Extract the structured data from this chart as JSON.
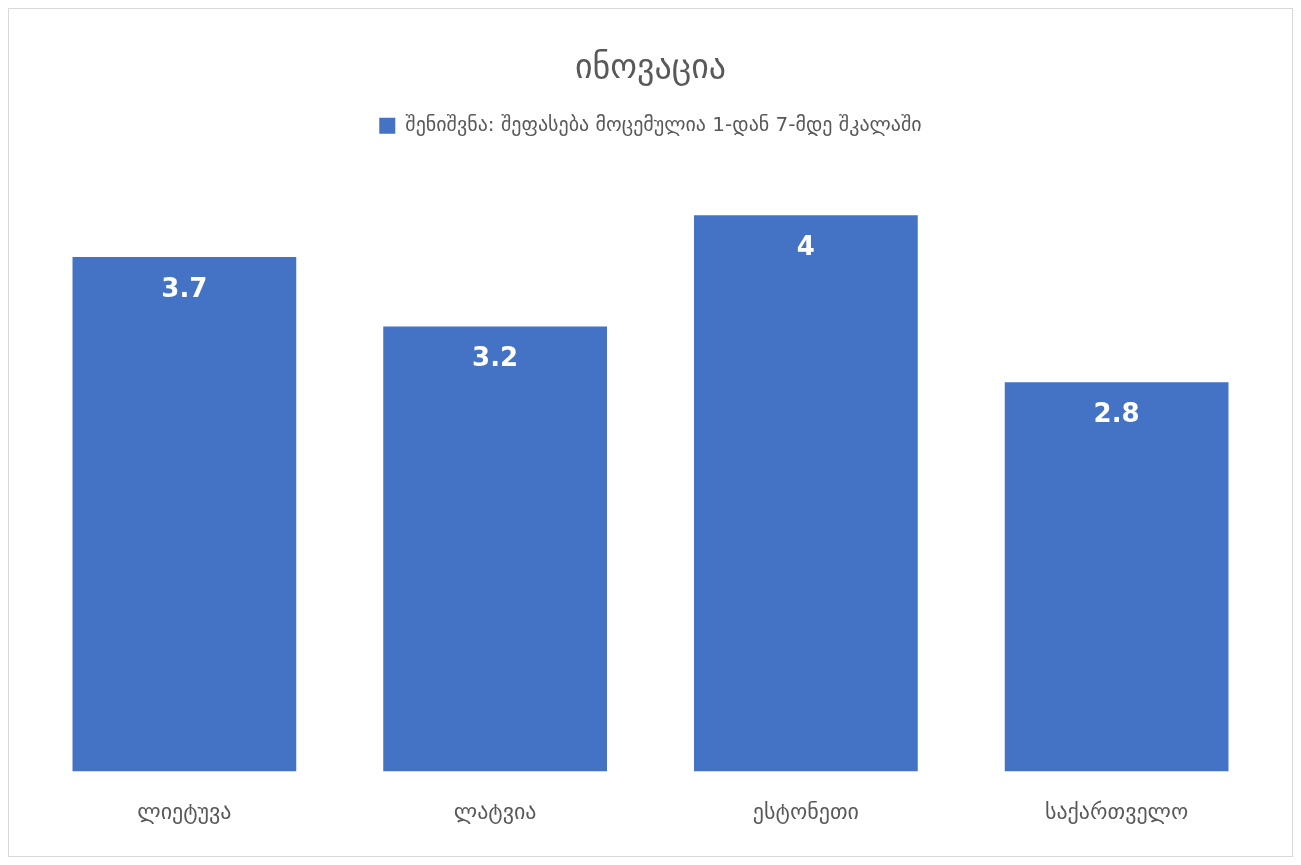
{
  "chart_data": {
    "type": "bar",
    "title": "ინოვაცია",
    "categories": [
      "ლიეტუვა",
      "ლატვია",
      "ესტონეთი",
      "საქართველო"
    ],
    "series": [
      {
        "name": "შენიშვნა: შეფასება მოცემულია 1-დან 7-მდე შკალაში",
        "color": "#4472c4",
        "values": [
          3.7,
          3.2,
          4,
          2.8
        ]
      }
    ],
    "data_labels": true,
    "grid": false,
    "legend": "top"
  }
}
